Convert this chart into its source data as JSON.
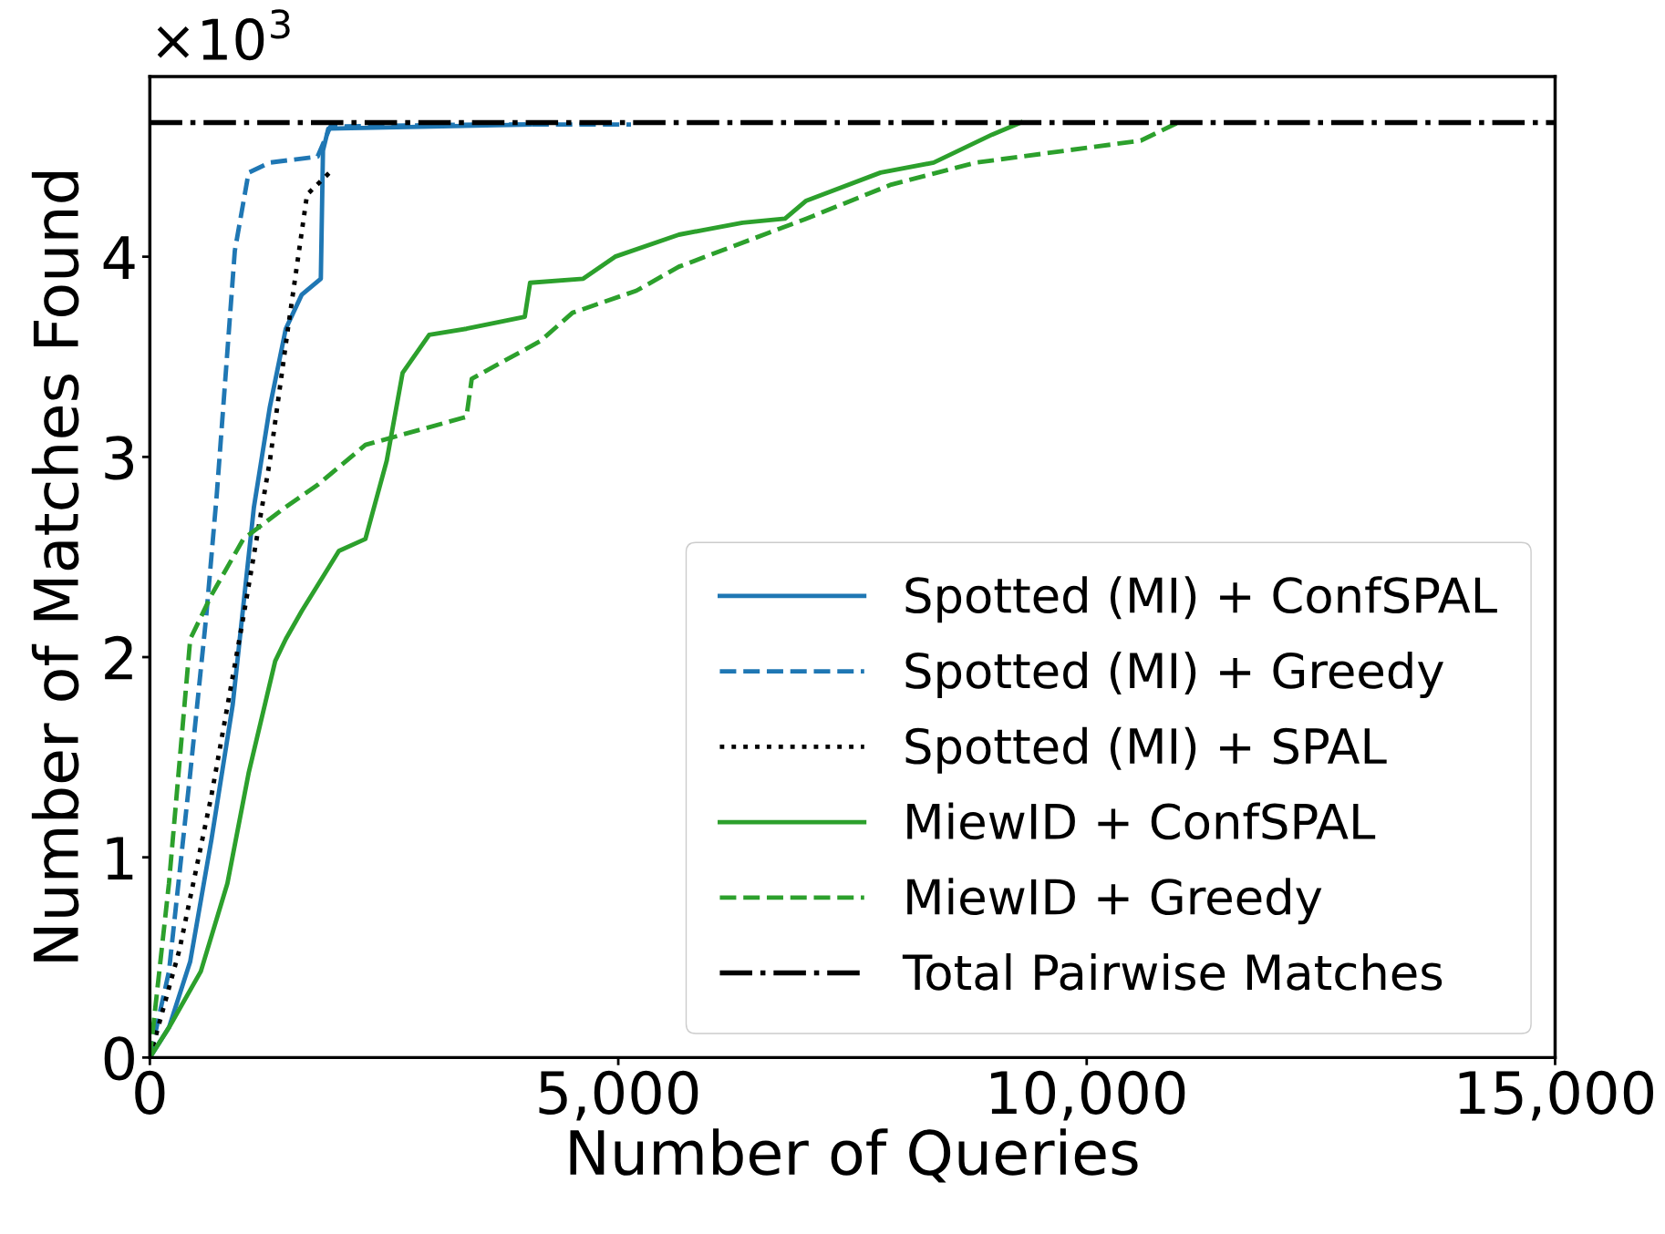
{
  "chart_data": {
    "type": "line",
    "xlabel": "Number of Queries",
    "ylabel": "Number of Matches Found",
    "xlim": [
      0,
      15000
    ],
    "xticks": [
      {
        "value": 0,
        "label": "0"
      },
      {
        "value": 5000,
        "label": "5,000"
      },
      {
        "value": 10000,
        "label": "10,000"
      },
      {
        "value": 15000,
        "label": "15,000"
      }
    ],
    "ylim": [
      0,
      4.9
    ],
    "yticks": [
      0,
      1,
      2,
      3,
      4
    ],
    "annotations": [
      "×10$^{3}$"
    ],
    "grid": false,
    "legend": "bottom right",
    "series": [
      {
        "name": "Spotted (MI) + ConfSPAL",
        "color": "#1f77b4",
        "line_style": "solid",
        "x": [
          0,
          204,
          431,
          658,
          884,
          1111,
          1281,
          1451,
          1621,
          1825,
          1848,
          1905,
          4059
        ],
        "values": [
          0,
          0.15,
          0.48,
          1.09,
          1.76,
          2.75,
          3.25,
          3.64,
          3.81,
          3.89,
          4.53,
          4.64,
          4.66
        ]
      },
      {
        "name": "Spotted (MI) + Greedy",
        "color": "#1f77b4",
        "line_style": "dashed",
        "x": [
          0,
          204,
          431,
          601,
          714,
          828,
          907,
          1054,
          1281,
          1791,
          1927,
          3492,
          5136
        ],
        "values": [
          0,
          0.43,
          1.42,
          2.2,
          2.81,
          3.53,
          4.03,
          4.42,
          4.47,
          4.5,
          4.65,
          4.66,
          4.66
        ]
      },
      {
        "name": "Spotted (MI) + SPAL",
        "color": "#000000",
        "line_style": "dotted",
        "x": [
          0,
          317,
          658,
          998,
          1281,
          1474,
          1678,
          1961
        ],
        "values": [
          0,
          0.54,
          1.31,
          2.2,
          2.98,
          3.64,
          4.31,
          4.44
        ]
      },
      {
        "name": "MiewID + ConfSPAL",
        "color": "#2ca02c",
        "line_style": "solid",
        "x": [
          0,
          204,
          544,
          828,
          1054,
          1338,
          1451,
          1621,
          2018,
          2301,
          2528,
          2698,
          2982,
          3379,
          4002,
          4059,
          4626,
          4966,
          5647,
          6327,
          6780,
          7007,
          7800,
          8367,
          8991,
          9297
        ],
        "values": [
          0,
          0.15,
          0.43,
          0.87,
          1.42,
          1.98,
          2.09,
          2.23,
          2.53,
          2.59,
          2.98,
          3.42,
          3.61,
          3.64,
          3.7,
          3.87,
          3.89,
          4.0,
          4.11,
          4.17,
          4.19,
          4.28,
          4.42,
          4.47,
          4.61,
          4.67
        ]
      },
      {
        "name": "MiewID + Greedy",
        "color": "#2ca02c",
        "line_style": "dashed",
        "x": [
          0,
          204,
          431,
          658,
          998,
          1451,
          1791,
          2301,
          3379,
          3436,
          4172,
          4512,
          5193,
          5647,
          7007,
          7913,
          8821,
          10578,
          10975
        ],
        "values": [
          0,
          0.87,
          2.09,
          2.31,
          2.59,
          2.75,
          2.86,
          3.06,
          3.2,
          3.39,
          3.58,
          3.72,
          3.83,
          3.95,
          4.19,
          4.36,
          4.47,
          4.58,
          4.67
        ]
      }
    ],
    "ref_lines": [
      {
        "axis": "y",
        "value": 4.67,
        "label": "Total Pairwise Matches",
        "color": "#000000",
        "line_style": "dashdot"
      }
    ]
  }
}
